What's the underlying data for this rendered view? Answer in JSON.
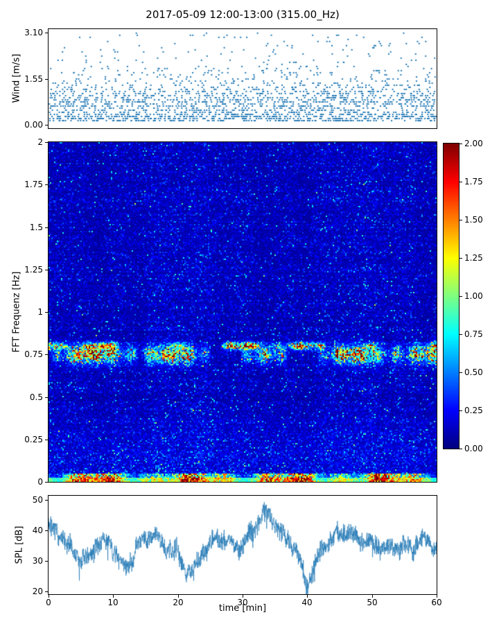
{
  "figure": {
    "title": "2017-05-09 12:00-13:00 (315.00_Hz)",
    "background_color": "#ffffff"
  },
  "chart_data": [
    {
      "type": "scatter",
      "id": "wind",
      "ylabel": "Wind [m/s]",
      "yticks": [
        "3.10",
        "1.55",
        "0.00"
      ],
      "ylim": [
        0.0,
        3.1
      ],
      "xlim_minutes": [
        0,
        60
      ],
      "marker_color": "#1f77b4",
      "marker_size_px": 2,
      "approx_point_count": 2200,
      "observed": {
        "min": 0.0,
        "max": 3.05,
        "dense_band": [
          0.1,
          1.6
        ]
      }
    },
    {
      "type": "heatmap",
      "id": "spectrogram",
      "ylabel": "FFT Frequenz [Hz]",
      "yticks": [
        "2",
        "1.75",
        "1.5",
        "1.25",
        "1",
        "0.75",
        "0.5",
        "0.25",
        "0"
      ],
      "ylim_hz": [
        0,
        2
      ],
      "xlim_minutes": [
        0,
        60
      ],
      "colormap": "jet",
      "clim": [
        0.0,
        2.0
      ],
      "colorbar_ticks": [
        "2.00",
        "1.75",
        "1.50",
        "1.25",
        "1.00",
        "0.75",
        "0.50",
        "0.25",
        "0.00"
      ],
      "features": {
        "background_level": [
          0.05,
          0.3
        ],
        "wave_band": {
          "center_hz": 0.75,
          "sigma_hz": 0.034,
          "peak_values": [
            1.0,
            2.0
          ],
          "intermittent": true
        },
        "narrow_band": {
          "center_hz": 0.8,
          "sigma_hz": 0.013,
          "peak_values": [
            1.2,
            2.0
          ]
        },
        "low_freq_band": {
          "below_hz": 0.05,
          "values": [
            0.6,
            2.0
          ]
        },
        "speckle_values": [
          0.3,
          0.9
        ]
      }
    },
    {
      "type": "line",
      "id": "spl",
      "ylabel": "SPL [dB]",
      "xlabel": "time [min]",
      "yticks": [
        "50",
        "40",
        "30",
        "20"
      ],
      "xticks": [
        "0",
        "10",
        "20",
        "30",
        "40",
        "50",
        "60"
      ],
      "ylim": [
        19.0,
        51.3
      ],
      "xlim_minutes": [
        0,
        60
      ],
      "line_color": "#1f77b4",
      "x_minutes": [
        0,
        2,
        4,
        6,
        8,
        10,
        12,
        14,
        16,
        18,
        20,
        22,
        24,
        26,
        28,
        30,
        32,
        34,
        36,
        38,
        40,
        42,
        44,
        46,
        48,
        50,
        52,
        54,
        56,
        58,
        60
      ],
      "values_db": [
        41,
        38,
        32,
        30,
        37,
        34,
        27,
        36,
        39,
        35,
        32,
        25,
        33,
        38,
        36,
        34,
        42,
        46,
        39,
        35,
        22,
        33,
        38,
        40,
        37,
        36,
        34,
        35,
        34,
        37,
        34
      ],
      "noise_amplitude_db": 3.5
    }
  ]
}
